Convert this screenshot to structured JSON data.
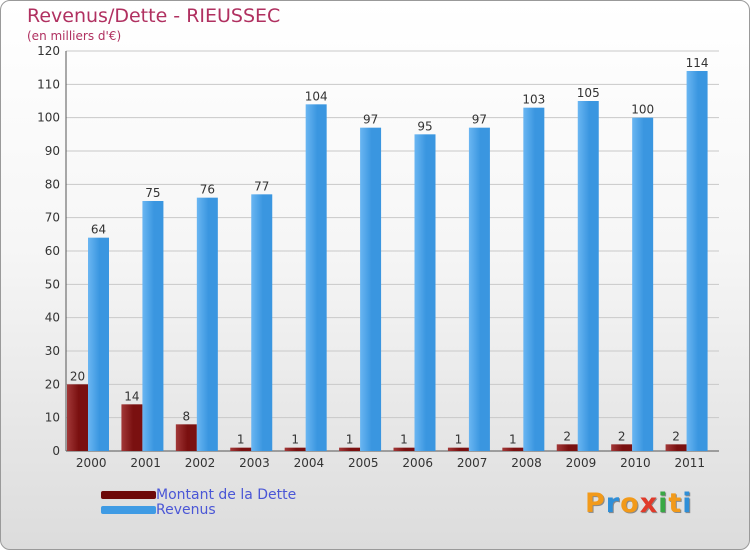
{
  "header": {
    "title": "Revenus/Dette - RIEUSSEC",
    "subtitle": "(en milliers d'€)"
  },
  "legend": [
    {
      "label": "Montant de la Dette",
      "color": "#6e0a0a"
    },
    {
      "label": "Revenus",
      "color": "#3f9be4"
    }
  ],
  "logo": {
    "letters": [
      "P",
      "r",
      "o",
      "x",
      "i",
      "t",
      "i"
    ],
    "colors": [
      "#f29a1a",
      "#2f8fd8",
      "#f29a1a",
      "#e03a2a",
      "#39a845",
      "#f29a1a",
      "#2f8fd8"
    ]
  },
  "colors": {
    "debt": "#7a1010",
    "debt_light": "#a23838",
    "revenue": "#3a96e0",
    "revenue_light": "#6ab6f2"
  },
  "chart_data": {
    "type": "bar",
    "title": "Revenus/Dette - RIEUSSEC",
    "ylabel": "(en milliers d'€)",
    "categories": [
      "2000",
      "2001",
      "2002",
      "2003",
      "2004",
      "2005",
      "2006",
      "2007",
      "2008",
      "2009",
      "2010",
      "2011"
    ],
    "series": [
      {
        "name": "Montant de la Dette",
        "values": [
          20,
          14,
          8,
          1,
          1,
          1,
          1,
          1,
          1,
          2,
          2,
          2
        ]
      },
      {
        "name": "Revenus",
        "values": [
          64,
          75,
          76,
          77,
          104,
          97,
          95,
          97,
          103,
          105,
          100,
          114
        ]
      }
    ],
    "ylim": [
      0,
      120
    ],
    "yticks": [
      0,
      10,
      20,
      30,
      40,
      50,
      60,
      70,
      80,
      90,
      100,
      110,
      120
    ],
    "grid": true,
    "legend_position": "bottom-left"
  }
}
